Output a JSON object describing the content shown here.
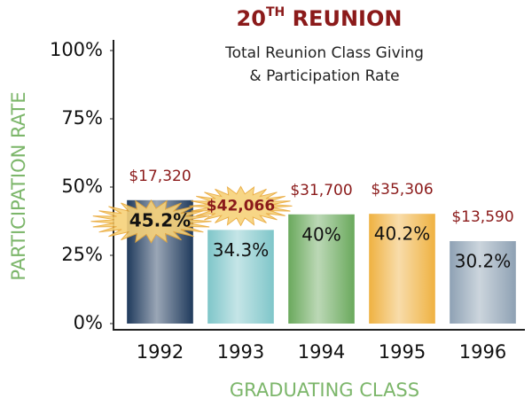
{
  "chart_data": {
    "type": "bar",
    "title": {
      "number": "20",
      "suffix": "TH",
      "text": " REUNION"
    },
    "subtitle": [
      "Total Reunion Class Giving",
      "& Participation Rate"
    ],
    "x_label": "GRADUATING CLASS",
    "y_label": "PARTICIPATION RATE",
    "categories": [
      "1992",
      "1993",
      "1994",
      "1995",
      "1996"
    ],
    "values": [
      45.2,
      34.3,
      40,
      40.2,
      30.2
    ],
    "value_labels": [
      "45.2%",
      "34.3%",
      "40%",
      "40.2%",
      "30.2%"
    ],
    "colors": [
      "#1f3a5c",
      "#7fc6c9",
      "#6aa95c",
      "#efb242",
      "#8ea1b4"
    ],
    "giving": {
      "values": [
        17320,
        42066,
        31700,
        35306,
        13590
      ],
      "value_labels": [
        "$17,320",
        "$42,066",
        "$31,700",
        "$35,306",
        "$13,590"
      ]
    },
    "ylim": [
      0,
      100
    ],
    "yticks": [
      {
        "value": 0,
        "label": "0%"
      },
      {
        "value": 25,
        "label": "25%"
      },
      {
        "value": 50,
        "label": "50%"
      },
      {
        "value": 75,
        "label": "75%"
      },
      {
        "value": 100,
        "label": "100%"
      }
    ]
  }
}
